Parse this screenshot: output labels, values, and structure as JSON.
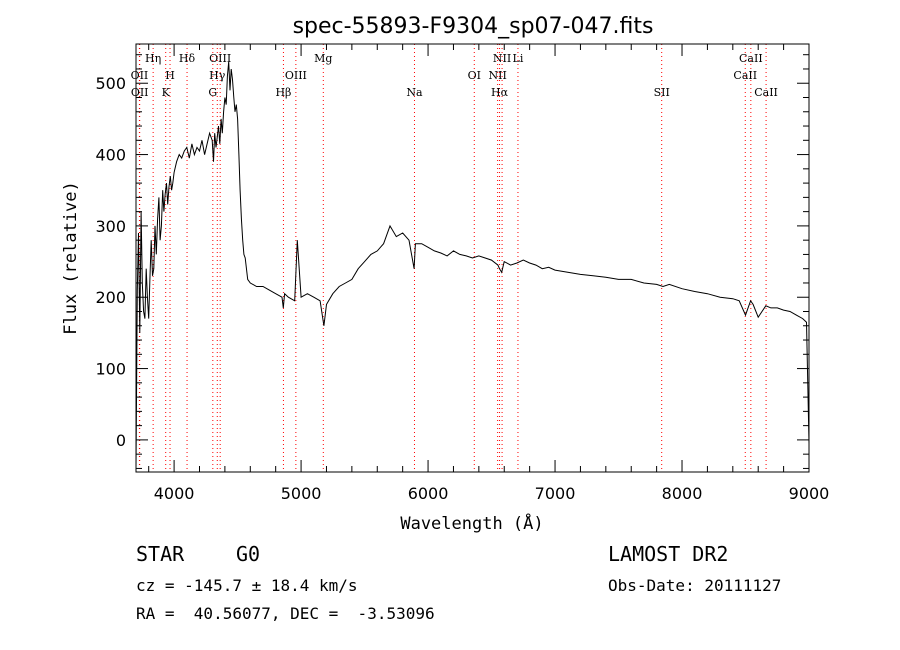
{
  "chart_data": {
    "type": "line",
    "title": "spec-55893-F9304_sp07-047.fits",
    "xlabel": "Wavelength (Å)",
    "ylabel": "Flux (relative)",
    "xlim": [
      3700,
      9000
    ],
    "ylim": [
      -45,
      555
    ],
    "x_ticks": [
      4000,
      5000,
      6000,
      7000,
      8000,
      9000
    ],
    "y_ticks": [
      0,
      100,
      200,
      300,
      400,
      500
    ],
    "grid": false,
    "series": [
      {
        "color": "#000000",
        "x": [
          3700,
          3710,
          3720,
          3730,
          3740,
          3750,
          3760,
          3770,
          3780,
          3790,
          3800,
          3810,
          3820,
          3830,
          3840,
          3850,
          3860,
          3870,
          3880,
          3890,
          3900,
          3910,
          3920,
          3930,
          3940,
          3950,
          3960,
          3970,
          3980,
          3990,
          4000,
          4020,
          4040,
          4060,
          4080,
          4100,
          4120,
          4140,
          4160,
          4180,
          4200,
          4220,
          4240,
          4260,
          4280,
          4300,
          4310,
          4320,
          4330,
          4340,
          4350,
          4360,
          4370,
          4380,
          4390,
          4400,
          4410,
          4420,
          4430,
          4440,
          4450,
          4460,
          4470,
          4480,
          4490,
          4500,
          4510,
          4520,
          4530,
          4540,
          4550,
          4560,
          4580,
          4600,
          4650,
          4700,
          4750,
          4800,
          4850,
          4860,
          4870,
          4900,
          4950,
          4970,
          5000,
          5050,
          5100,
          5150,
          5180,
          5200,
          5250,
          5300,
          5350,
          5400,
          5450,
          5500,
          5550,
          5600,
          5650,
          5700,
          5750,
          5800,
          5850,
          5890,
          5900,
          5950,
          6000,
          6050,
          6100,
          6150,
          6200,
          6250,
          6300,
          6350,
          6400,
          6450,
          6500,
          6550,
          6563,
          6580,
          6600,
          6650,
          6700,
          6750,
          6800,
          6850,
          6900,
          6950,
          7000,
          7100,
          7200,
          7300,
          7400,
          7500,
          7600,
          7700,
          7800,
          7850,
          7900,
          8000,
          8100,
          8200,
          8300,
          8400,
          8450,
          8500,
          8540,
          8560,
          8600,
          8660,
          8700,
          8750,
          8800,
          8850,
          8900,
          8950,
          8980,
          9000
        ],
        "y": [
          -40,
          210,
          290,
          150,
          320,
          220,
          180,
          170,
          240,
          200,
          170,
          230,
          280,
          230,
          240,
          300,
          260,
          310,
          340,
          280,
          300,
          350,
          320,
          345,
          360,
          330,
          355,
          370,
          350,
          360,
          375,
          390,
          400,
          395,
          405,
          410,
          395,
          415,
          400,
          410,
          405,
          420,
          400,
          415,
          430,
          420,
          390,
          430,
          410,
          425,
          440,
          415,
          450,
          430,
          460,
          480,
          470,
          510,
          530,
          490,
          520,
          505,
          480,
          460,
          470,
          450,
          400,
          350,
          310,
          280,
          260,
          255,
          225,
          220,
          215,
          215,
          210,
          205,
          200,
          185,
          205,
          200,
          195,
          280,
          200,
          205,
          200,
          195,
          160,
          190,
          205,
          215,
          220,
          225,
          240,
          250,
          260,
          265,
          275,
          300,
          285,
          290,
          280,
          240,
          275,
          275,
          270,
          265,
          262,
          258,
          265,
          260,
          258,
          255,
          258,
          255,
          252,
          245,
          240,
          235,
          250,
          245,
          248,
          252,
          248,
          245,
          240,
          242,
          238,
          235,
          232,
          230,
          228,
          225,
          225,
          220,
          218,
          215,
          218,
          212,
          208,
          205,
          200,
          198,
          195,
          175,
          195,
          190,
          172,
          188,
          185,
          185,
          182,
          180,
          175,
          170,
          165,
          -5
        ]
      }
    ],
    "line_markers": [
      {
        "label": "OII",
        "x": 3727,
        "row": 1
      },
      {
        "label": "OII",
        "x": 3729,
        "row": 2
      },
      {
        "label": "Hη",
        "x": 3835,
        "row": 0
      },
      {
        "label": "H",
        "x": 3968,
        "row": 1
      },
      {
        "label": "K",
        "x": 3934,
        "row": 2
      },
      {
        "label": "Hδ",
        "x": 4102,
        "row": 0
      },
      {
        "label": "OIII",
        "x": 4363,
        "row": 0
      },
      {
        "label": "Hγ",
        "x": 4340,
        "row": 1
      },
      {
        "label": "G",
        "x": 4305,
        "row": 2
      },
      {
        "label": "OIII",
        "x": 4959,
        "row": 1
      },
      {
        "label": "Hβ",
        "x": 4861,
        "row": 2
      },
      {
        "label": "Mg",
        "x": 5175,
        "row": 0
      },
      {
        "label": "Na",
        "x": 5893,
        "row": 2
      },
      {
        "label": "OI",
        "x": 6364,
        "row": 1
      },
      {
        "label": "NII",
        "x": 6583,
        "row": 0
      },
      {
        "label": "NII",
        "x": 6548,
        "row": 1
      },
      {
        "label": "Hα",
        "x": 6563,
        "row": 2
      },
      {
        "label": "Li",
        "x": 6708,
        "row": 0
      },
      {
        "label": "SII",
        "x": 7840,
        "row": 2
      },
      {
        "label": "CaII",
        "x": 8542,
        "row": 0
      },
      {
        "label": "CaII",
        "x": 8498,
        "row": 1
      },
      {
        "label": "CaII",
        "x": 8662,
        "row": 2
      }
    ],
    "marker_color": "#ff0000"
  },
  "footer": {
    "object_class": "STAR",
    "subclass": "G0",
    "survey": "LAMOST DR2",
    "cz": "cz = -145.7 ± 18.4 km/s",
    "obs_date": "Obs-Date: 20111127",
    "coords": "RA =  40.56077, DEC =  -3.53096"
  }
}
